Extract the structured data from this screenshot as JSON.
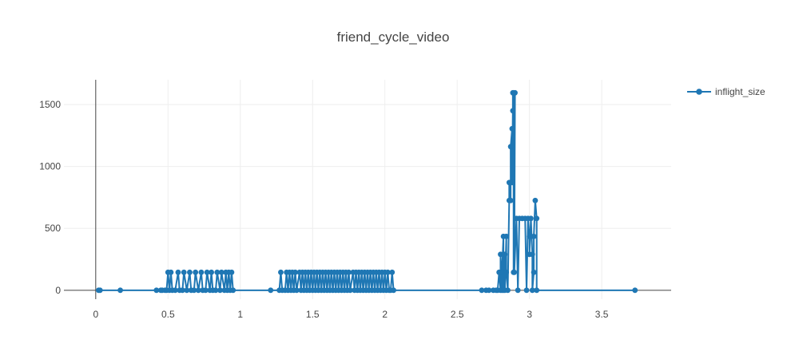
{
  "chart_data": {
    "type": "line",
    "title": "friend_cycle_video",
    "xlabel": "",
    "ylabel": "",
    "xlim": [
      -0.22,
      3.98
    ],
    "ylim": [
      -72,
      1700
    ],
    "x_ticks": [
      0,
      0.5,
      1,
      1.5,
      2,
      2.5,
      3,
      3.5
    ],
    "x_tick_labels": [
      "0",
      "0.5",
      "1",
      "1.5",
      "2",
      "2.5",
      "3",
      "3.5"
    ],
    "y_ticks": [
      0,
      500,
      1000,
      1500
    ],
    "y_tick_labels": [
      "0",
      "500",
      "1000",
      "1500"
    ],
    "grid": true,
    "legend_position": "top-right",
    "color": "#1f77b4",
    "series": [
      {
        "name": "inflight_size",
        "points": [
          [
            0.02,
            0
          ],
          [
            0.03,
            0
          ],
          [
            0.17,
            0
          ],
          [
            0.42,
            0
          ],
          [
            0.45,
            0
          ],
          [
            0.46,
            0
          ],
          [
            0.48,
            0
          ],
          [
            0.49,
            0
          ],
          [
            0.5,
            145
          ],
          [
            0.51,
            0
          ],
          [
            0.52,
            145
          ],
          [
            0.53,
            0
          ],
          [
            0.55,
            0
          ],
          [
            0.57,
            145
          ],
          [
            0.58,
            0
          ],
          [
            0.6,
            0
          ],
          [
            0.61,
            145
          ],
          [
            0.63,
            0
          ],
          [
            0.65,
            145
          ],
          [
            0.66,
            0
          ],
          [
            0.68,
            0
          ],
          [
            0.69,
            145
          ],
          [
            0.71,
            0
          ],
          [
            0.73,
            145
          ],
          [
            0.74,
            0
          ],
          [
            0.76,
            0
          ],
          [
            0.77,
            145
          ],
          [
            0.79,
            0
          ],
          [
            0.8,
            145
          ],
          [
            0.81,
            0
          ],
          [
            0.83,
            0
          ],
          [
            0.84,
            145
          ],
          [
            0.86,
            0
          ],
          [
            0.87,
            145
          ],
          [
            0.89,
            0
          ],
          [
            0.9,
            145
          ],
          [
            0.91,
            0
          ],
          [
            0.92,
            145
          ],
          [
            0.93,
            0
          ],
          [
            0.94,
            145
          ],
          [
            0.95,
            0
          ],
          [
            1.21,
            0
          ],
          [
            1.27,
            0
          ],
          [
            1.28,
            145
          ],
          [
            1.29,
            0
          ],
          [
            1.31,
            0
          ],
          [
            1.32,
            145
          ],
          [
            1.33,
            0
          ],
          [
            1.34,
            145
          ],
          [
            1.35,
            0
          ],
          [
            1.36,
            145
          ],
          [
            1.37,
            0
          ],
          [
            1.38,
            145
          ],
          [
            1.39,
            0
          ],
          [
            1.41,
            145
          ],
          [
            1.42,
            0
          ],
          [
            1.43,
            145
          ],
          [
            1.44,
            0
          ],
          [
            1.45,
            145
          ],
          [
            1.46,
            0
          ],
          [
            1.47,
            145
          ],
          [
            1.48,
            0
          ],
          [
            1.49,
            145
          ],
          [
            1.5,
            0
          ],
          [
            1.51,
            145
          ],
          [
            1.52,
            0
          ],
          [
            1.53,
            145
          ],
          [
            1.54,
            0
          ],
          [
            1.55,
            145
          ],
          [
            1.56,
            0
          ],
          [
            1.57,
            145
          ],
          [
            1.58,
            0
          ],
          [
            1.59,
            145
          ],
          [
            1.6,
            0
          ],
          [
            1.61,
            145
          ],
          [
            1.62,
            0
          ],
          [
            1.63,
            145
          ],
          [
            1.64,
            0
          ],
          [
            1.65,
            145
          ],
          [
            1.66,
            0
          ],
          [
            1.67,
            145
          ],
          [
            1.68,
            0
          ],
          [
            1.69,
            145
          ],
          [
            1.7,
            0
          ],
          [
            1.71,
            145
          ],
          [
            1.72,
            0
          ],
          [
            1.73,
            145
          ],
          [
            1.74,
            0
          ],
          [
            1.75,
            145
          ],
          [
            1.76,
            0
          ],
          [
            1.78,
            145
          ],
          [
            1.79,
            0
          ],
          [
            1.8,
            145
          ],
          [
            1.81,
            0
          ],
          [
            1.82,
            145
          ],
          [
            1.83,
            0
          ],
          [
            1.84,
            145
          ],
          [
            1.85,
            0
          ],
          [
            1.86,
            145
          ],
          [
            1.87,
            0
          ],
          [
            1.88,
            145
          ],
          [
            1.89,
            0
          ],
          [
            1.9,
            145
          ],
          [
            1.91,
            0
          ],
          [
            1.92,
            145
          ],
          [
            1.93,
            0
          ],
          [
            1.94,
            145
          ],
          [
            1.95,
            0
          ],
          [
            1.96,
            145
          ],
          [
            1.97,
            0
          ],
          [
            1.98,
            145
          ],
          [
            1.99,
            0
          ],
          [
            2.0,
            145
          ],
          [
            2.01,
            0
          ],
          [
            2.02,
            145
          ],
          [
            2.03,
            0
          ],
          [
            2.04,
            0
          ],
          [
            2.05,
            145
          ],
          [
            2.06,
            0
          ],
          [
            2.67,
            0
          ],
          [
            2.7,
            0
          ],
          [
            2.72,
            0
          ],
          [
            2.75,
            0
          ],
          [
            2.77,
            0
          ],
          [
            2.78,
            0
          ],
          [
            2.79,
            145
          ],
          [
            2.8,
            0
          ],
          [
            2.8,
            290
          ],
          [
            2.81,
            0
          ],
          [
            2.81,
            145
          ],
          [
            2.82,
            435
          ],
          [
            2.82,
            0
          ],
          [
            2.83,
            290
          ],
          [
            2.83,
            0
          ],
          [
            2.84,
            435
          ],
          [
            2.84,
            145
          ],
          [
            2.85,
            0
          ],
          [
            2.86,
            725
          ],
          [
            2.86,
            870
          ],
          [
            2.87,
            725
          ],
          [
            2.87,
            1160
          ],
          [
            2.88,
            1305
          ],
          [
            2.88,
            870
          ],
          [
            2.885,
            1450
          ],
          [
            2.885,
            1595
          ],
          [
            2.89,
            1595
          ],
          [
            2.89,
            145
          ],
          [
            2.9,
            1595
          ],
          [
            2.895,
            145
          ],
          [
            2.91,
            580
          ],
          [
            2.92,
            0
          ],
          [
            2.93,
            580
          ],
          [
            2.95,
            580
          ],
          [
            2.97,
            580
          ],
          [
            2.98,
            0
          ],
          [
            2.99,
            580
          ],
          [
            3.0,
            435
          ],
          [
            3.0,
            290
          ],
          [
            3.01,
            580
          ],
          [
            3.02,
            290
          ],
          [
            3.02,
            0
          ],
          [
            3.03,
            145
          ],
          [
            3.03,
            435
          ],
          [
            3.04,
            725
          ],
          [
            3.05,
            580
          ],
          [
            3.05,
            0
          ],
          [
            3.73,
            0
          ]
        ]
      }
    ]
  }
}
